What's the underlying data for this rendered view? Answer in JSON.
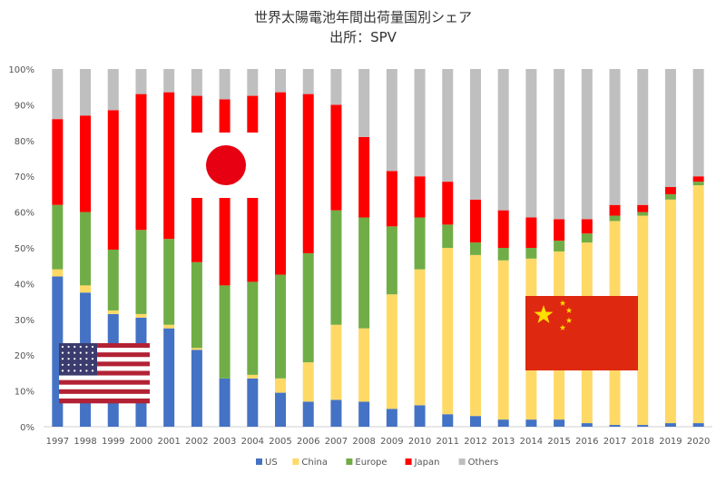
{
  "chart_data": {
    "type": "bar",
    "stacked": true,
    "title": "世界太陽電池年間出荷量国別シェア",
    "subtitle": "出所：SPV",
    "categories": [
      "1997",
      "1998",
      "1999",
      "2000",
      "2001",
      "2002",
      "2003",
      "2004",
      "2005",
      "2006",
      "2007",
      "2008",
      "2009",
      "2010",
      "2011",
      "2012",
      "2013",
      "2014",
      "2015",
      "2016",
      "2017",
      "2018",
      "2019",
      "2020"
    ],
    "series": [
      {
        "name": "US",
        "color": "#4472C4",
        "values": [
          42,
          37.5,
          31.5,
          30.5,
          27.5,
          21.5,
          13.5,
          13.5,
          9.5,
          7,
          7.5,
          7,
          5,
          6,
          3.5,
          3,
          2,
          2,
          2,
          1,
          0.5,
          0.5,
          1,
          1
        ]
      },
      {
        "name": "China",
        "color": "#FFD966",
        "values": [
          2,
          2,
          1,
          1,
          1,
          0.5,
          0,
          1,
          4,
          11,
          21,
          20.5,
          32,
          38,
          46.5,
          45,
          44.5,
          45,
          47,
          50.5,
          57,
          58.5,
          62.5,
          66.5
        ]
      },
      {
        "name": "Europe",
        "color": "#70AD47",
        "values": [
          18,
          20.5,
          17,
          23.5,
          24,
          24,
          26,
          26,
          29,
          30.5,
          32,
          31,
          19,
          14.5,
          6.5,
          3.5,
          3.5,
          3,
          3,
          2.5,
          1.5,
          1,
          1.5,
          1
        ]
      },
      {
        "name": "Japan",
        "color": "#FF0000",
        "values": [
          24,
          27,
          39,
          38,
          41,
          46.5,
          52,
          52,
          51,
          44.5,
          29.5,
          22.5,
          15.5,
          11.5,
          12,
          12,
          10.5,
          8.5,
          6,
          4,
          3,
          2,
          2,
          1.5
        ]
      },
      {
        "name": "Others",
        "color": "#BFBFBF",
        "values": [
          14,
          13,
          11.5,
          7,
          6.5,
          7.5,
          8.5,
          7.5,
          6.5,
          7,
          10,
          19,
          28.5,
          30,
          31.5,
          36.5,
          39.5,
          41.5,
          42,
          42,
          38,
          38,
          33,
          30
        ]
      }
    ],
    "ylim": [
      0,
      100
    ],
    "yticks": [
      "0%",
      "10%",
      "20%",
      "30%",
      "40%",
      "50%",
      "60%",
      "70%",
      "80%",
      "90%",
      "100%"
    ],
    "legend_position": "bottom",
    "grid": false
  },
  "decorations": {
    "flags": [
      {
        "name": "us-flag-icon"
      },
      {
        "name": "japan-flag-icon"
      },
      {
        "name": "china-flag-icon"
      }
    ]
  }
}
